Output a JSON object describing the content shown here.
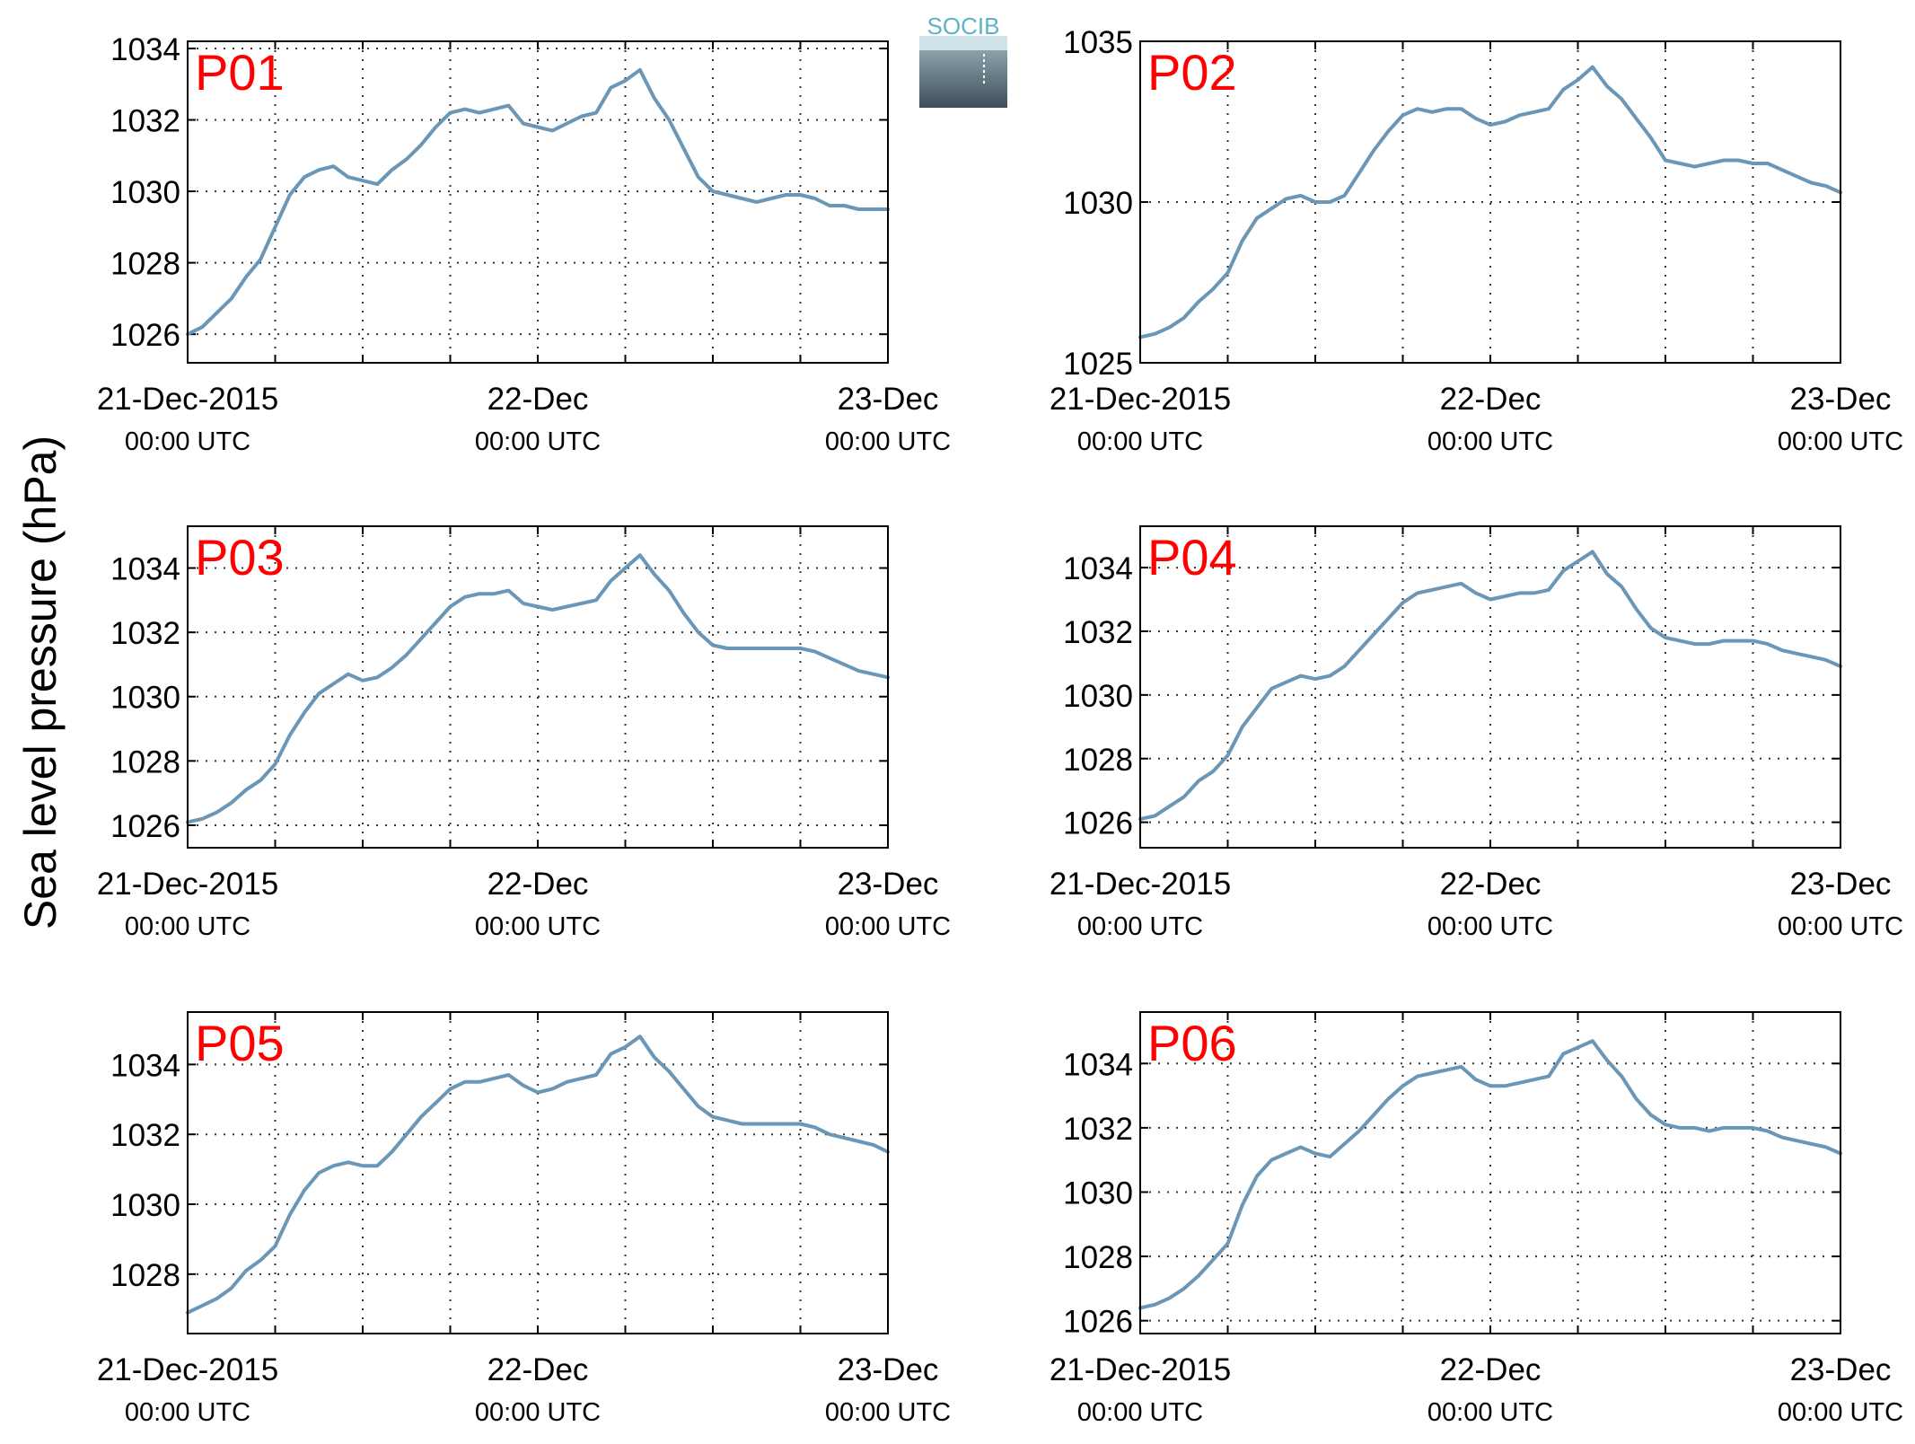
{
  "figure": {
    "ylabel": "Sea level pressure (hPa)",
    "logo_text": "SOCIB",
    "line_color": "#6a96b8",
    "label_color": "#ff0000"
  },
  "chart_data": [
    {
      "type": "line",
      "title": "P01",
      "x_ticks": [
        {
          "date": "21-Dec-2015",
          "time": "00:00 UTC"
        },
        {
          "date": "22-Dec",
          "time": "00:00 UTC"
        },
        {
          "date": "23-Dec",
          "time": "00:00 UTC"
        }
      ],
      "x_range_hours": [
        0,
        48
      ],
      "grid_x_hours": [
        0,
        6,
        12,
        18,
        24,
        30,
        36,
        42,
        48
      ],
      "ylim": [
        1025.2,
        1034.2
      ],
      "yticks": [
        1026,
        1028,
        1030,
        1032,
        1034
      ],
      "series": [
        {
          "x_hours": [
            0,
            1,
            2,
            3,
            4,
            5,
            6,
            7,
            8,
            9,
            10,
            11,
            12,
            13,
            14,
            15,
            16,
            17,
            18,
            19,
            20,
            21,
            22,
            23,
            24,
            25,
            26,
            27,
            28,
            29,
            30,
            31,
            32,
            33,
            34,
            35,
            36,
            37,
            38,
            39,
            40,
            41,
            42,
            43,
            44,
            45,
            46,
            47,
            48
          ],
          "values": [
            1026.0,
            1026.2,
            1026.6,
            1027.0,
            1027.6,
            1028.1,
            1029.0,
            1029.9,
            1030.4,
            1030.6,
            1030.7,
            1030.4,
            1030.3,
            1030.2,
            1030.6,
            1030.9,
            1031.3,
            1031.8,
            1032.2,
            1032.3,
            1032.2,
            1032.3,
            1032.4,
            1031.9,
            1031.8,
            1031.7,
            1031.9,
            1032.1,
            1032.2,
            1032.9,
            1033.1,
            1033.4,
            1032.6,
            1032.0,
            1031.2,
            1030.4,
            1030.0,
            1029.9,
            1029.8,
            1029.7,
            1029.8,
            1029.9,
            1029.9,
            1029.8,
            1029.6,
            1029.6,
            1029.5,
            1029.5,
            1029.5
          ]
        }
      ]
    },
    {
      "type": "line",
      "title": "P02",
      "x_ticks": [
        {
          "date": "21-Dec-2015",
          "time": "00:00 UTC"
        },
        {
          "date": "22-Dec",
          "time": "00:00 UTC"
        },
        {
          "date": "23-Dec",
          "time": "00:00 UTC"
        }
      ],
      "x_range_hours": [
        0,
        48
      ],
      "grid_x_hours": [
        0,
        6,
        12,
        18,
        24,
        30,
        36,
        42,
        48
      ],
      "ylim": [
        1025,
        1035
      ],
      "yticks": [
        1025,
        1030,
        1035
      ],
      "series": [
        {
          "x_hours": [
            0,
            1,
            2,
            3,
            4,
            5,
            6,
            7,
            8,
            9,
            10,
            11,
            12,
            13,
            14,
            15,
            16,
            17,
            18,
            19,
            20,
            21,
            22,
            23,
            24,
            25,
            26,
            27,
            28,
            29,
            30,
            31,
            32,
            33,
            34,
            35,
            36,
            37,
            38,
            39,
            40,
            41,
            42,
            43,
            44,
            45,
            46,
            47,
            48
          ],
          "values": [
            1025.8,
            1025.9,
            1026.1,
            1026.4,
            1026.9,
            1027.3,
            1027.8,
            1028.8,
            1029.5,
            1029.8,
            1030.1,
            1030.2,
            1030.0,
            1030.0,
            1030.2,
            1030.9,
            1031.6,
            1032.2,
            1032.7,
            1032.9,
            1032.8,
            1032.9,
            1032.9,
            1032.6,
            1032.4,
            1032.5,
            1032.7,
            1032.8,
            1032.9,
            1033.5,
            1033.8,
            1034.2,
            1033.6,
            1033.2,
            1032.6,
            1032.0,
            1031.3,
            1031.2,
            1031.1,
            1031.2,
            1031.3,
            1031.3,
            1031.2,
            1031.2,
            1031.0,
            1030.8,
            1030.6,
            1030.5,
            1030.3
          ]
        }
      ]
    },
    {
      "type": "line",
      "title": "P03",
      "x_ticks": [
        {
          "date": "21-Dec-2015",
          "time": "00:00 UTC"
        },
        {
          "date": "22-Dec",
          "time": "00:00 UTC"
        },
        {
          "date": "23-Dec",
          "time": "00:00 UTC"
        }
      ],
      "x_range_hours": [
        0,
        48
      ],
      "grid_x_hours": [
        0,
        6,
        12,
        18,
        24,
        30,
        36,
        42,
        48
      ],
      "ylim": [
        1025.3,
        1035.3
      ],
      "yticks": [
        1026,
        1028,
        1030,
        1032,
        1034
      ],
      "series": [
        {
          "x_hours": [
            0,
            1,
            2,
            3,
            4,
            5,
            6,
            7,
            8,
            9,
            10,
            11,
            12,
            13,
            14,
            15,
            16,
            17,
            18,
            19,
            20,
            21,
            22,
            23,
            24,
            25,
            26,
            27,
            28,
            29,
            30,
            31,
            32,
            33,
            34,
            35,
            36,
            37,
            38,
            39,
            40,
            41,
            42,
            43,
            44,
            45,
            46,
            47,
            48
          ],
          "values": [
            1026.1,
            1026.2,
            1026.4,
            1026.7,
            1027.1,
            1027.4,
            1027.9,
            1028.8,
            1029.5,
            1030.1,
            1030.4,
            1030.7,
            1030.5,
            1030.6,
            1030.9,
            1031.3,
            1031.8,
            1032.3,
            1032.8,
            1033.1,
            1033.2,
            1033.2,
            1033.3,
            1032.9,
            1032.8,
            1032.7,
            1032.8,
            1032.9,
            1033.0,
            1033.6,
            1034.0,
            1034.4,
            1033.8,
            1033.3,
            1032.6,
            1032.0,
            1031.6,
            1031.5,
            1031.5,
            1031.5,
            1031.5,
            1031.5,
            1031.5,
            1031.4,
            1031.2,
            1031.0,
            1030.8,
            1030.7,
            1030.6
          ]
        }
      ]
    },
    {
      "type": "line",
      "title": "P04",
      "x_ticks": [
        {
          "date": "21-Dec-2015",
          "time": "00:00 UTC"
        },
        {
          "date": "22-Dec",
          "time": "00:00 UTC"
        },
        {
          "date": "23-Dec",
          "time": "00:00 UTC"
        }
      ],
      "x_range_hours": [
        0,
        48
      ],
      "grid_x_hours": [
        0,
        6,
        12,
        18,
        24,
        30,
        36,
        42,
        48
      ],
      "ylim": [
        1025.2,
        1035.3
      ],
      "yticks": [
        1026,
        1028,
        1030,
        1032,
        1034
      ],
      "series": [
        {
          "x_hours": [
            0,
            1,
            2,
            3,
            4,
            5,
            6,
            7,
            8,
            9,
            10,
            11,
            12,
            13,
            14,
            15,
            16,
            17,
            18,
            19,
            20,
            21,
            22,
            23,
            24,
            25,
            26,
            27,
            28,
            29,
            30,
            31,
            32,
            33,
            34,
            35,
            36,
            37,
            38,
            39,
            40,
            41,
            42,
            43,
            44,
            45,
            46,
            47,
            48
          ],
          "values": [
            1026.1,
            1026.2,
            1026.5,
            1026.8,
            1027.3,
            1027.6,
            1028.1,
            1029.0,
            1029.6,
            1030.2,
            1030.4,
            1030.6,
            1030.5,
            1030.6,
            1030.9,
            1031.4,
            1031.9,
            1032.4,
            1032.9,
            1033.2,
            1033.3,
            1033.4,
            1033.5,
            1033.2,
            1033.0,
            1033.1,
            1033.2,
            1033.2,
            1033.3,
            1033.9,
            1034.2,
            1034.5,
            1033.8,
            1033.4,
            1032.7,
            1032.1,
            1031.8,
            1031.7,
            1031.6,
            1031.6,
            1031.7,
            1031.7,
            1031.7,
            1031.6,
            1031.4,
            1031.3,
            1031.2,
            1031.1,
            1030.9
          ]
        }
      ]
    },
    {
      "type": "line",
      "title": "P05",
      "x_ticks": [
        {
          "date": "21-Dec-2015",
          "time": "00:00 UTC"
        },
        {
          "date": "22-Dec",
          "time": "00:00 UTC"
        },
        {
          "date": "23-Dec",
          "time": "00:00 UTC"
        }
      ],
      "x_range_hours": [
        0,
        48
      ],
      "grid_x_hours": [
        0,
        6,
        12,
        18,
        24,
        30,
        36,
        42,
        48
      ],
      "ylim": [
        1026.3,
        1035.5
      ],
      "yticks": [
        1028,
        1030,
        1032,
        1034
      ],
      "series": [
        {
          "x_hours": [
            0,
            1,
            2,
            3,
            4,
            5,
            6,
            7,
            8,
            9,
            10,
            11,
            12,
            13,
            14,
            15,
            16,
            17,
            18,
            19,
            20,
            21,
            22,
            23,
            24,
            25,
            26,
            27,
            28,
            29,
            30,
            31,
            32,
            33,
            34,
            35,
            36,
            37,
            38,
            39,
            40,
            41,
            42,
            43,
            44,
            45,
            46,
            47,
            48
          ],
          "values": [
            1026.9,
            1027.1,
            1027.3,
            1027.6,
            1028.1,
            1028.4,
            1028.8,
            1029.7,
            1030.4,
            1030.9,
            1031.1,
            1031.2,
            1031.1,
            1031.1,
            1031.5,
            1032.0,
            1032.5,
            1032.9,
            1033.3,
            1033.5,
            1033.5,
            1033.6,
            1033.7,
            1033.4,
            1033.2,
            1033.3,
            1033.5,
            1033.6,
            1033.7,
            1034.3,
            1034.5,
            1034.8,
            1034.2,
            1033.8,
            1033.3,
            1032.8,
            1032.5,
            1032.4,
            1032.3,
            1032.3,
            1032.3,
            1032.3,
            1032.3,
            1032.2,
            1032.0,
            1031.9,
            1031.8,
            1031.7,
            1031.5
          ]
        }
      ]
    },
    {
      "type": "line",
      "title": "P06",
      "x_ticks": [
        {
          "date": "21-Dec-2015",
          "time": "00:00 UTC"
        },
        {
          "date": "22-Dec",
          "time": "00:00 UTC"
        },
        {
          "date": "23-Dec",
          "time": "00:00 UTC"
        }
      ],
      "x_range_hours": [
        0,
        48
      ],
      "grid_x_hours": [
        0,
        6,
        12,
        18,
        24,
        30,
        36,
        42,
        48
      ],
      "ylim": [
        1025.6,
        1035.6
      ],
      "yticks": [
        1026,
        1028,
        1030,
        1032,
        1034
      ],
      "series": [
        {
          "x_hours": [
            0,
            1,
            2,
            3,
            4,
            5,
            6,
            7,
            8,
            9,
            10,
            11,
            12,
            13,
            14,
            15,
            16,
            17,
            18,
            19,
            20,
            21,
            22,
            23,
            24,
            25,
            26,
            27,
            28,
            29,
            30,
            31,
            32,
            33,
            34,
            35,
            36,
            37,
            38,
            39,
            40,
            41,
            42,
            43,
            44,
            45,
            46,
            47,
            48
          ],
          "values": [
            1026.4,
            1026.5,
            1026.7,
            1027.0,
            1027.4,
            1027.9,
            1028.4,
            1029.6,
            1030.5,
            1031.0,
            1031.2,
            1031.4,
            1031.2,
            1031.1,
            1031.5,
            1031.9,
            1032.4,
            1032.9,
            1033.3,
            1033.6,
            1033.7,
            1033.8,
            1033.9,
            1033.5,
            1033.3,
            1033.3,
            1033.4,
            1033.5,
            1033.6,
            1034.3,
            1034.5,
            1034.7,
            1034.1,
            1033.6,
            1032.9,
            1032.4,
            1032.1,
            1032.0,
            1032.0,
            1031.9,
            1032.0,
            1032.0,
            1032.0,
            1031.9,
            1031.7,
            1031.6,
            1031.5,
            1031.4,
            1031.2
          ]
        }
      ]
    }
  ]
}
